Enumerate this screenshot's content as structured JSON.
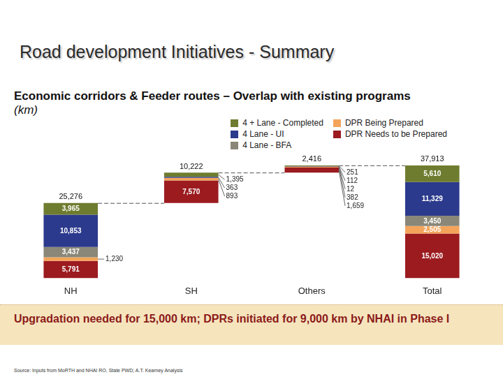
{
  "chart_data": {
    "type": "waterfall",
    "title": "Road development Initiatives - Summary",
    "subtitle": "Economic corridors & Feeder routes – Overlap with existing programs",
    "ylabel": "(km)",
    "categories": [
      "NH",
      "SH",
      "Others",
      "Total"
    ],
    "series": [
      {
        "name": "4 + Lane - Completed",
        "color": "#6e7c2f",
        "values": [
          3965,
          1395,
          251,
          5610
        ],
        "value_labels": [
          "3,965",
          "1,395",
          "251",
          "5,610"
        ]
      },
      {
        "name": "4 Lane - UI",
        "color": "#2b3a8c",
        "values": [
          10853,
          363,
          112,
          11329
        ],
        "value_labels": [
          "10,853",
          "363",
          "112",
          "11,329"
        ]
      },
      {
        "name": "4 Lane - BFA",
        "color": "#8a8778",
        "values": [
          3437,
          null,
          12,
          3450
        ],
        "value_labels": [
          "3,437",
          null,
          "12",
          "3,450"
        ]
      },
      {
        "name": "DPR Being Prepared",
        "color": "#f4a45a",
        "values": [
          1230,
          893,
          382,
          2505
        ],
        "value_labels": [
          "1,230",
          "893",
          "382",
          "2,505"
        ]
      },
      {
        "name": "DPR Needs to be Prepared",
        "color": "#9b1b1f",
        "values": [
          5791,
          7570,
          1659,
          15020
        ],
        "value_labels": [
          "5,791",
          "7,570",
          "1,659",
          "15,020"
        ]
      }
    ],
    "totals": {
      "values": [
        25276,
        10222,
        2416,
        37913
      ],
      "value_labels": [
        "25,276",
        "10,222",
        "2,416",
        "37,913"
      ]
    },
    "stacked": true,
    "data_labels": true,
    "tick_labels": "x",
    "grid": false,
    "legend": "upper right",
    "annotations": [
      "Upgradation needed for 15,000 km; DPRs initiated for 9,000 km by NHAI in Phase I"
    ],
    "source": "Source: Inputs from MoRTH and NHAI RO, State PWD; A.T. Kearney Analysis"
  }
}
